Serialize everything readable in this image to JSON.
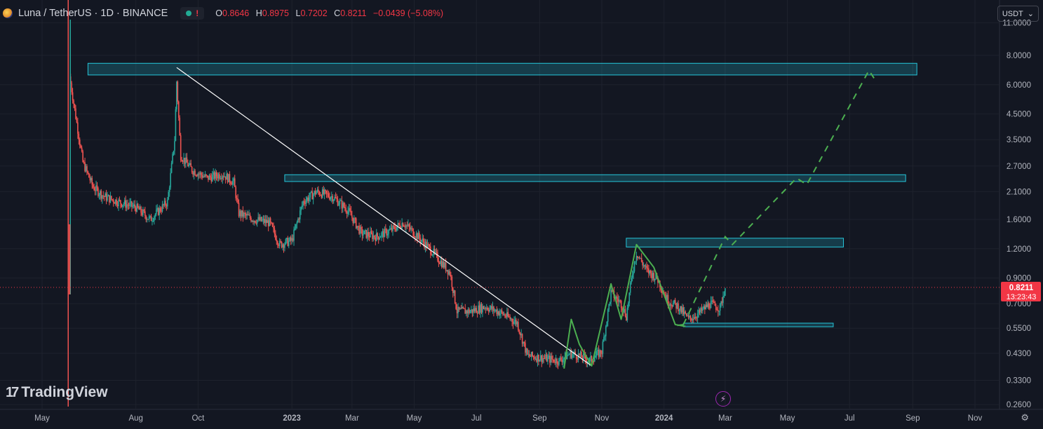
{
  "header": {
    "symbol": "Luna / TetherUS · 1D · BINANCE",
    "open_label": "O",
    "open": "0.8646",
    "high_label": "H",
    "high": "0.8975",
    "low_label": "L",
    "low": "0.7202",
    "close_label": "C",
    "close": "0.8211",
    "change": "−0.0439 (−5.08%)",
    "warning": "!"
  },
  "currency_selector": {
    "label": "USDT"
  },
  "watermark": {
    "text": "TradingView"
  },
  "colors": {
    "background": "#131722",
    "up": "#26a69a",
    "down": "#ef5350",
    "zone_border": "#26c6da",
    "zone_fill": "rgba(38,198,218,0.22)",
    "trend": "#ffffff",
    "wave": "#4caf50",
    "price_badge": "#f23645"
  },
  "chart_data": {
    "type": "candlestick",
    "scale": "log",
    "ylim": [
      0.23,
      12
    ],
    "y_ticks": [
      "11.0000",
      "8.0000",
      "6.0000",
      "4.5000",
      "3.5000",
      "2.7000",
      "2.1000",
      "1.6000",
      "1.2000",
      "0.9000",
      "0.7000",
      "0.5500",
      "0.4300",
      "0.3300",
      "0.2600"
    ],
    "x_ticks": [
      "May",
      "Aug",
      "Oct",
      "2023",
      "Mar",
      "May",
      "Jul",
      "Sep",
      "Nov",
      "2024",
      "Mar",
      "May",
      "Jul",
      "Sep",
      "Nov"
    ],
    "x_tick_dates": [
      "2022-05-01",
      "2022-08-01",
      "2022-10-01",
      "2023-01-01",
      "2023-03-01",
      "2023-05-01",
      "2023-07-01",
      "2023-09-01",
      "2023-11-01",
      "2024-01-01",
      "2024-03-01",
      "2024-05-01",
      "2024-07-01",
      "2024-09-01",
      "2024-11-01"
    ],
    "last_price": "0.8211",
    "countdown": "13:23:43",
    "price_path": [
      [
        "2022-05-28",
        6.5
      ],
      [
        "2022-06-01",
        5.0
      ],
      [
        "2022-06-10",
        2.8
      ],
      [
        "2022-06-20",
        2.2
      ],
      [
        "2022-07-01",
        2.0
      ],
      [
        "2022-07-15",
        1.9
      ],
      [
        "2022-08-01",
        1.8
      ],
      [
        "2022-08-15",
        1.6
      ],
      [
        "2022-09-01",
        1.9
      ],
      [
        "2022-09-08",
        3.5
      ],
      [
        "2022-09-10",
        6.2
      ],
      [
        "2022-09-14",
        3.0
      ],
      [
        "2022-09-25",
        2.6
      ],
      [
        "2022-10-10",
        2.4
      ],
      [
        "2022-10-25",
        2.5
      ],
      [
        "2022-11-05",
        2.3
      ],
      [
        "2022-11-10",
        1.7
      ],
      [
        "2022-11-25",
        1.6
      ],
      [
        "2022-12-10",
        1.55
      ],
      [
        "2022-12-20",
        1.25
      ],
      [
        "2023-01-01",
        1.3
      ],
      [
        "2023-01-12",
        1.9
      ],
      [
        "2023-01-25",
        2.1
      ],
      [
        "2023-02-10",
        2.0
      ],
      [
        "2023-02-25",
        1.75
      ],
      [
        "2023-03-10",
        1.4
      ],
      [
        "2023-03-25",
        1.35
      ],
      [
        "2023-04-10",
        1.45
      ],
      [
        "2023-04-20",
        1.55
      ],
      [
        "2023-05-05",
        1.35
      ],
      [
        "2023-05-20",
        1.15
      ],
      [
        "2023-06-05",
        0.95
      ],
      [
        "2023-06-12",
        0.65
      ],
      [
        "2023-06-25",
        0.65
      ],
      [
        "2023-07-10",
        0.68
      ],
      [
        "2023-07-25",
        0.64
      ],
      [
        "2023-08-10",
        0.58
      ],
      [
        "2023-08-20",
        0.42
      ],
      [
        "2023-09-05",
        0.41
      ],
      [
        "2023-09-20",
        0.4
      ],
      [
        "2023-10-01",
        0.43
      ],
      [
        "2023-10-10",
        0.42
      ],
      [
        "2023-10-20",
        0.4
      ],
      [
        "2023-11-01",
        0.44
      ],
      [
        "2023-11-10",
        0.78
      ],
      [
        "2023-11-20",
        0.7
      ],
      [
        "2023-11-25",
        0.62
      ],
      [
        "2023-12-01",
        0.95
      ],
      [
        "2023-12-05",
        1.15
      ],
      [
        "2023-12-15",
        0.97
      ],
      [
        "2023-12-25",
        0.9
      ],
      [
        "2024-01-05",
        0.72
      ],
      [
        "2024-01-15",
        0.68
      ],
      [
        "2024-01-25",
        0.6
      ],
      [
        "2024-02-05",
        0.64
      ],
      [
        "2024-02-15",
        0.7
      ],
      [
        "2024-02-25",
        0.67
      ],
      [
        "2024-03-01",
        0.8211
      ]
    ],
    "zones": [
      {
        "from": "2022-06-15",
        "to": "2024-09-05",
        "low": 6.6,
        "high": 7.4
      },
      {
        "from": "2022-12-25",
        "to": "2024-08-25",
        "low": 2.32,
        "high": 2.48
      },
      {
        "from": "2023-11-25",
        "to": "2024-06-25",
        "low": 1.22,
        "high": 1.33
      },
      {
        "from": "2024-01-20",
        "to": "2024-06-15",
        "low": 0.558,
        "high": 0.578
      }
    ],
    "trendline": [
      [
        "2022-09-10",
        7.1
      ],
      [
        "2023-10-22",
        0.38
      ]
    ],
    "wave_path": [
      [
        "2023-09-25",
        0.37
      ],
      [
        "2023-10-02",
        0.6
      ],
      [
        "2023-10-10",
        0.47
      ],
      [
        "2023-10-22",
        0.38
      ],
      [
        "2023-11-10",
        0.85
      ],
      [
        "2023-11-20",
        0.6
      ],
      [
        "2023-12-05",
        1.25
      ],
      [
        "2023-12-22",
        1.0
      ],
      [
        "2024-01-12",
        0.57
      ],
      [
        "2024-01-22",
        0.56
      ]
    ],
    "wave_entry": [
      [
        "2024-01-14",
        0.565
      ],
      [
        "2024-01-20",
        0.57
      ]
    ],
    "projection": [
      [
        "2024-01-20",
        0.57
      ],
      [
        "2024-03-01",
        1.35
      ],
      [
        "2024-03-08",
        1.25
      ],
      [
        "2024-05-10",
        2.4
      ],
      [
        "2024-05-20",
        2.25
      ],
      [
        "2024-07-20",
        6.9
      ],
      [
        "2024-07-25",
        6.4
      ]
    ]
  }
}
